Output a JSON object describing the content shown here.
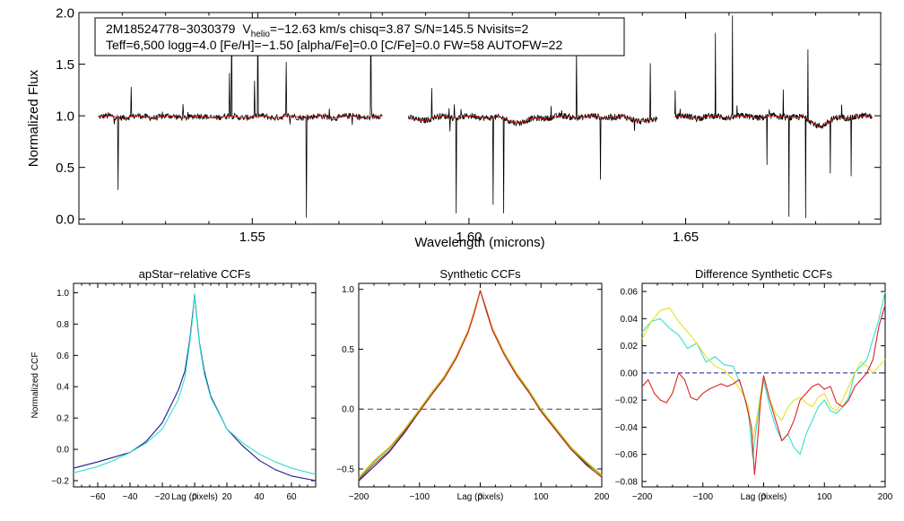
{
  "chart_data": [
    {
      "id": "spectrum",
      "type": "line",
      "xlabel": "Wavelength (microns)",
      "ylabel": "Normalized Flux",
      "xlim": [
        1.51,
        1.695
      ],
      "ylim": [
        -0.05,
        2.0
      ],
      "xticks": [
        1.55,
        1.6,
        1.65
      ],
      "xtick_labels": [
        "1.55",
        "1.60",
        "1.65"
      ],
      "yticks": [
        0.0,
        0.5,
        1.0,
        1.5,
        2.0
      ],
      "ytick_labels": [
        "0.0",
        "0.5",
        "1.0",
        "1.5",
        "2.0"
      ],
      "chips": [
        [
          1.5145,
          1.58
        ],
        [
          1.586,
          1.6435
        ],
        [
          1.6475,
          1.693
        ]
      ],
      "series": [
        {
          "name": "observed",
          "color": "#000000"
        },
        {
          "name": "model",
          "color": "#dd0000"
        }
      ],
      "info": {
        "id": "2M18524778−3030379",
        "v_label": "V",
        "v_sub": "helio",
        "v_rest": "=−12.63 km/s  chisq=3.87  S/N=145.5  Nvisits=2",
        "line2": "Teff=6,500 logg=4.0 [Fe/H]=−1.50 [alpha/Fe]=0.0 [C/Fe]=0.0 FW=58 AUTOFW=22"
      }
    },
    {
      "id": "apstar-ccf",
      "type": "line",
      "title": "apStar−relative CCFs",
      "xlabel": "Lag (pixels)",
      "ylabel": "Normalized CCF",
      "xlim": [
        -75,
        75
      ],
      "ylim": [
        -0.24,
        1.06
      ],
      "xticks": [
        -60,
        -40,
        -20,
        0,
        20,
        40,
        60
      ],
      "xtick_labels": [
        "−60",
        "−40",
        "−20",
        "0",
        "20",
        "40",
        "60"
      ],
      "yticks": [
        -0.2,
        0.0,
        0.2,
        0.4,
        0.6,
        0.8,
        1.0
      ],
      "ytick_labels": [
        "−0.2",
        "0.0",
        "0.2",
        "0.4",
        "0.6",
        "0.8",
        "1.0"
      ],
      "series": [
        {
          "name": "visit-1",
          "color": "#1a1a8c",
          "x": [
            -75,
            -60,
            -50,
            -40,
            -30,
            -20,
            -10,
            -6,
            -3,
            -1,
            0,
            1,
            3,
            6,
            10,
            20,
            30,
            40,
            50,
            60,
            75
          ],
          "y": [
            -0.12,
            -0.08,
            -0.05,
            -0.02,
            0.05,
            0.17,
            0.38,
            0.5,
            0.7,
            0.88,
            0.99,
            0.88,
            0.68,
            0.5,
            0.34,
            0.13,
            0.02,
            -0.07,
            -0.13,
            -0.17,
            -0.2
          ]
        },
        {
          "name": "visit-2",
          "color": "#33e0cc",
          "x": [
            -75,
            -60,
            -50,
            -40,
            -30,
            -20,
            -10,
            -6,
            -3,
            -1,
            0,
            1,
            3,
            6,
            10,
            20,
            30,
            40,
            50,
            60,
            75
          ],
          "y": [
            -0.15,
            -0.11,
            -0.07,
            -0.02,
            0.04,
            0.13,
            0.32,
            0.46,
            0.68,
            0.86,
            0.99,
            0.87,
            0.67,
            0.48,
            0.33,
            0.13,
            0.04,
            -0.03,
            -0.08,
            -0.12,
            -0.16
          ]
        }
      ]
    },
    {
      "id": "synthetic-ccf",
      "type": "line",
      "title": "Synthetic CCFs",
      "xlabel": "Lag (pixels)",
      "ylabel": "",
      "xlim": [
        -200,
        200
      ],
      "ylim": [
        -0.65,
        1.05
      ],
      "xticks": [
        -200,
        -100,
        0,
        100,
        200
      ],
      "xtick_labels": [
        "−200",
        "−100",
        "0",
        "100",
        "200"
      ],
      "yticks": [
        -0.5,
        0.0,
        0.5,
        1.0
      ],
      "ytick_labels": [
        "−0.5",
        "0.0",
        "0.5",
        "1.0"
      ],
      "zero_line": 0.0,
      "series": [
        {
          "name": "synthetic-1",
          "color": "#1a1a8c",
          "x": [
            -200,
            -175,
            -150,
            -125,
            -100,
            -80,
            -60,
            -40,
            -20,
            -10,
            0,
            10,
            20,
            40,
            60,
            80,
            100,
            125,
            150,
            175,
            200
          ],
          "y": [
            -0.6,
            -0.48,
            -0.36,
            -0.2,
            -0.02,
            0.12,
            0.25,
            0.42,
            0.64,
            0.8,
            0.99,
            0.82,
            0.66,
            0.45,
            0.28,
            0.14,
            -0.02,
            -0.18,
            -0.34,
            -0.46,
            -0.55
          ]
        },
        {
          "name": "synthetic-2",
          "color": "#22cc22",
          "x": [
            -200,
            -175,
            -150,
            -125,
            -100,
            -80,
            -60,
            -40,
            -20,
            -10,
            0,
            10,
            20,
            40,
            60,
            80,
            100,
            125,
            150,
            175,
            200
          ],
          "y": [
            -0.58,
            -0.44,
            -0.33,
            -0.18,
            -0.01,
            0.13,
            0.26,
            0.43,
            0.65,
            0.81,
            0.99,
            0.83,
            0.67,
            0.46,
            0.29,
            0.15,
            -0.01,
            -0.17,
            -0.33,
            -0.45,
            -0.56
          ]
        },
        {
          "name": "synthetic-3",
          "color": "#e8c020",
          "x": [
            -200,
            -175,
            -150,
            -125,
            -100,
            -80,
            -60,
            -40,
            -20,
            -10,
            0,
            10,
            20,
            40,
            60,
            80,
            100,
            125,
            150,
            175,
            200
          ],
          "y": [
            -0.57,
            -0.43,
            -0.32,
            -0.17,
            0.0,
            0.14,
            0.27,
            0.44,
            0.66,
            0.82,
            0.99,
            0.84,
            0.68,
            0.47,
            0.3,
            0.16,
            0.0,
            -0.16,
            -0.32,
            -0.44,
            -0.55
          ]
        },
        {
          "name": "synthetic-4",
          "color": "#dd2222",
          "x": [
            -200,
            -175,
            -150,
            -125,
            -100,
            -80,
            -60,
            -40,
            -20,
            -10,
            0,
            10,
            20,
            40,
            60,
            80,
            100,
            125,
            150,
            175,
            200
          ],
          "y": [
            -0.59,
            -0.46,
            -0.35,
            -0.19,
            -0.02,
            0.12,
            0.25,
            0.42,
            0.64,
            0.8,
            0.99,
            0.83,
            0.66,
            0.45,
            0.28,
            0.14,
            -0.02,
            -0.18,
            -0.34,
            -0.47,
            -0.57
          ]
        }
      ]
    },
    {
      "id": "difference-ccf",
      "type": "line",
      "title": "Difference Synthetic CCFs",
      "xlabel": "Lag (pixels)",
      "ylabel": "",
      "xlim": [
        -200,
        200
      ],
      "ylim": [
        -0.084,
        0.066
      ],
      "xticks": [
        -200,
        -100,
        0,
        100,
        200
      ],
      "xtick_labels": [
        "−200",
        "−100",
        "0",
        "100",
        "200"
      ],
      "yticks": [
        -0.08,
        -0.06,
        -0.04,
        -0.02,
        0.0,
        0.02,
        0.04,
        0.06
      ],
      "ytick_labels": [
        "−0.08",
        "−0.06",
        "−0.04",
        "−0.02",
        "0.00",
        "0.02",
        "0.04",
        "0.06"
      ],
      "series": [
        {
          "name": "zero-ref",
          "color": "#1a1a8c",
          "x": [
            -200,
            200
          ],
          "y": [
            0.0,
            0.0
          ]
        },
        {
          "name": "diff-cyan",
          "color": "#33e0cc",
          "x": [
            -200,
            -185,
            -170,
            -155,
            -140,
            -125,
            -110,
            -95,
            -80,
            -65,
            -50,
            -35,
            -25,
            -18,
            -12,
            -5,
            0,
            10,
            20,
            30,
            40,
            50,
            60,
            70,
            80,
            90,
            100,
            110,
            120,
            130,
            140,
            150,
            160,
            170,
            180,
            190,
            200
          ],
          "y": [
            0.03,
            0.038,
            0.04,
            0.033,
            0.028,
            0.018,
            0.022,
            0.008,
            0.012,
            0.006,
            0.005,
            -0.012,
            -0.03,
            -0.062,
            -0.04,
            -0.02,
            -0.005,
            -0.025,
            -0.04,
            -0.05,
            -0.045,
            -0.055,
            -0.06,
            -0.045,
            -0.035,
            -0.025,
            -0.02,
            -0.028,
            -0.03,
            -0.025,
            -0.018,
            0.0,
            0.005,
            0.01,
            0.025,
            0.04,
            0.06
          ]
        },
        {
          "name": "diff-yellow",
          "color": "#e8e020",
          "x": [
            -200,
            -185,
            -170,
            -155,
            -140,
            -125,
            -110,
            -95,
            -80,
            -65,
            -50,
            -35,
            -25,
            -18,
            -12,
            -5,
            0,
            10,
            20,
            30,
            40,
            50,
            60,
            70,
            80,
            90,
            100,
            110,
            120,
            130,
            140,
            150,
            160,
            170,
            180,
            190,
            200
          ],
          "y": [
            0.025,
            0.038,
            0.046,
            0.048,
            0.038,
            0.03,
            0.022,
            0.012,
            0.005,
            0.002,
            -0.005,
            -0.015,
            -0.025,
            -0.05,
            -0.035,
            -0.015,
            -0.002,
            -0.02,
            -0.03,
            -0.035,
            -0.025,
            -0.02,
            -0.018,
            -0.022,
            -0.025,
            -0.018,
            -0.015,
            -0.025,
            -0.028,
            -0.02,
            -0.01,
            0.0,
            0.008,
            0.005,
            0.0,
            0.005,
            0.01
          ]
        },
        {
          "name": "diff-red",
          "color": "#dd2222",
          "x": [
            -200,
            -190,
            -180,
            -170,
            -160,
            -150,
            -140,
            -130,
            -120,
            -110,
            -100,
            -90,
            -80,
            -70,
            -60,
            -50,
            -40,
            -30,
            -20,
            -15,
            -10,
            -5,
            0,
            10,
            20,
            30,
            40,
            50,
            60,
            70,
            80,
            90,
            100,
            110,
            120,
            130,
            140,
            150,
            160,
            170,
            180,
            190,
            200
          ],
          "y": [
            -0.01,
            -0.005,
            -0.015,
            -0.02,
            -0.022,
            -0.015,
            0.0,
            -0.005,
            -0.018,
            -0.02,
            -0.015,
            -0.012,
            -0.01,
            -0.008,
            -0.01,
            -0.008,
            -0.005,
            -0.02,
            -0.04,
            -0.075,
            -0.05,
            -0.02,
            -0.002,
            -0.02,
            -0.035,
            -0.05,
            -0.045,
            -0.035,
            -0.02,
            -0.015,
            -0.01,
            -0.008,
            -0.012,
            -0.01,
            -0.022,
            -0.025,
            -0.02,
            -0.01,
            -0.005,
            0.0,
            0.01,
            0.035,
            0.05
          ]
        }
      ]
    }
  ]
}
